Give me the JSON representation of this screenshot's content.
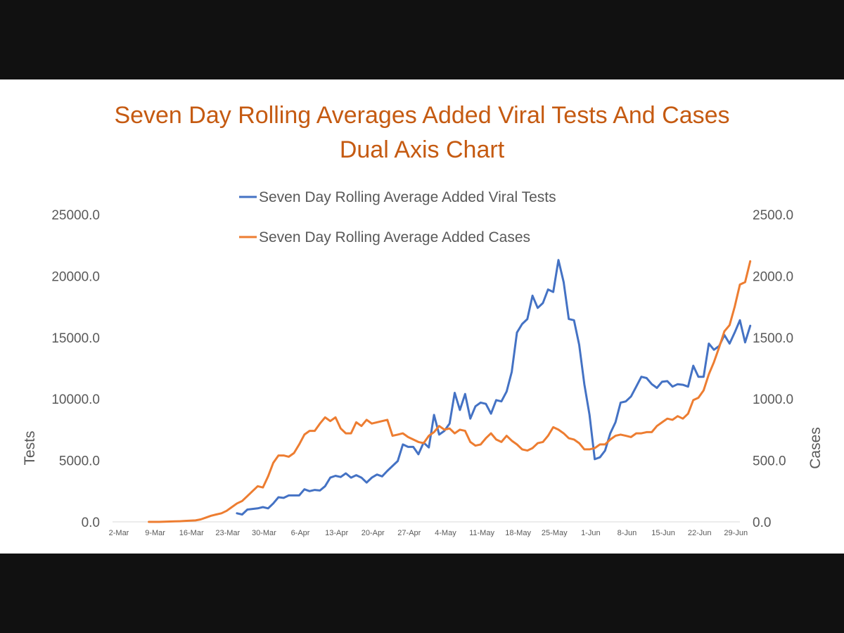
{
  "chart_data": {
    "type": "line",
    "title_lines": [
      "Seven Day Rolling Averages Added Viral Tests And Cases",
      "Dual Axis Chart"
    ],
    "left_axis": {
      "title": "Tests",
      "min": 0,
      "max": 25000,
      "step": 5000,
      "tick_labels": [
        "0.0",
        "5000.0",
        "10000.0",
        "15000.0",
        "20000.0",
        "25000.0"
      ]
    },
    "right_axis": {
      "title": "Cases",
      "min": 0,
      "max": 2500,
      "step": 500,
      "tick_labels": [
        "0.0",
        "500.0",
        "1000.0",
        "1500.0",
        "2000.0",
        "2500.0"
      ]
    },
    "x_axis": {
      "start_date": "2020-03-02",
      "end_date": "2020-07-01",
      "tick_labels": [
        "2-Mar",
        "9-Mar",
        "16-Mar",
        "23-Mar",
        "30-Mar",
        "6-Apr",
        "13-Apr",
        "20-Apr",
        "27-Apr",
        "4-May",
        "11-May",
        "18-May",
        "25-May",
        "1-Jun",
        "8-Jun",
        "15-Jun",
        "22-Jun",
        "29-Jun"
      ]
    },
    "grid": false,
    "legend_position": "top",
    "series": [
      {
        "name": "Seven Day Rolling Average Added Viral Tests",
        "axis": "left",
        "color": "#4472C4",
        "points": [
          [
            "2020-03-26",
            700
          ],
          [
            "2020-03-27",
            600
          ],
          [
            "2020-03-28",
            1000
          ],
          [
            "2020-03-29",
            1050
          ],
          [
            "2020-03-30",
            1100
          ],
          [
            "2020-03-31",
            1200
          ],
          [
            "2020-04-01",
            1100
          ],
          [
            "2020-04-02",
            1500
          ],
          [
            "2020-04-03",
            2000
          ],
          [
            "2020-04-04",
            1950
          ],
          [
            "2020-04-05",
            2150
          ],
          [
            "2020-04-06",
            2150
          ],
          [
            "2020-04-07",
            2150
          ],
          [
            "2020-04-08",
            2650
          ],
          [
            "2020-04-09",
            2500
          ],
          [
            "2020-04-10",
            2600
          ],
          [
            "2020-04-11",
            2550
          ],
          [
            "2020-04-12",
            2900
          ],
          [
            "2020-04-13",
            3600
          ],
          [
            "2020-04-14",
            3750
          ],
          [
            "2020-04-15",
            3650
          ],
          [
            "2020-04-16",
            3950
          ],
          [
            "2020-04-17",
            3600
          ],
          [
            "2020-04-18",
            3800
          ],
          [
            "2020-04-19",
            3600
          ],
          [
            "2020-04-20",
            3200
          ],
          [
            "2020-04-21",
            3600
          ],
          [
            "2020-04-22",
            3850
          ],
          [
            "2020-04-23",
            3700
          ],
          [
            "2020-04-24",
            4150
          ],
          [
            "2020-04-25",
            4550
          ],
          [
            "2020-04-26",
            4950
          ],
          [
            "2020-04-27",
            6300
          ],
          [
            "2020-04-28",
            6100
          ],
          [
            "2020-04-29",
            6100
          ],
          [
            "2020-04-30",
            5500
          ],
          [
            "2020-05-01",
            6450
          ],
          [
            "2020-05-02",
            6050
          ],
          [
            "2020-05-03",
            8700
          ],
          [
            "2020-05-04",
            7100
          ],
          [
            "2020-05-05",
            7400
          ],
          [
            "2020-05-06",
            8000
          ],
          [
            "2020-05-07",
            10500
          ],
          [
            "2020-05-08",
            9100
          ],
          [
            "2020-05-09",
            10400
          ],
          [
            "2020-05-10",
            8400
          ],
          [
            "2020-05-11",
            9400
          ],
          [
            "2020-05-12",
            9700
          ],
          [
            "2020-05-13",
            9600
          ],
          [
            "2020-05-14",
            8800
          ],
          [
            "2020-05-15",
            9900
          ],
          [
            "2020-05-16",
            9800
          ],
          [
            "2020-05-17",
            10600
          ],
          [
            "2020-05-18",
            12200
          ],
          [
            "2020-05-19",
            15400
          ],
          [
            "2020-05-20",
            16100
          ],
          [
            "2020-05-21",
            16500
          ],
          [
            "2020-05-22",
            18400
          ],
          [
            "2020-05-23",
            17400
          ],
          [
            "2020-05-24",
            17800
          ],
          [
            "2020-05-25",
            18900
          ],
          [
            "2020-05-26",
            18700
          ],
          [
            "2020-05-27",
            21300
          ],
          [
            "2020-05-28",
            19500
          ],
          [
            "2020-05-29",
            16500
          ],
          [
            "2020-05-30",
            16400
          ],
          [
            "2020-05-31",
            14400
          ],
          [
            "2020-06-01",
            11200
          ],
          [
            "2020-06-02",
            8700
          ],
          [
            "2020-06-03",
            5100
          ],
          [
            "2020-06-04",
            5250
          ],
          [
            "2020-06-05",
            5800
          ],
          [
            "2020-06-06",
            7200
          ],
          [
            "2020-06-07",
            8100
          ],
          [
            "2020-06-08",
            9700
          ],
          [
            "2020-06-09",
            9800
          ],
          [
            "2020-06-10",
            10200
          ],
          [
            "2020-06-11",
            11000
          ],
          [
            "2020-06-12",
            11800
          ],
          [
            "2020-06-13",
            11700
          ],
          [
            "2020-06-14",
            11200
          ],
          [
            "2020-06-15",
            10900
          ],
          [
            "2020-06-16",
            11400
          ],
          [
            "2020-06-17",
            11450
          ],
          [
            "2020-06-18",
            11000
          ],
          [
            "2020-06-19",
            11200
          ],
          [
            "2020-06-20",
            11150
          ],
          [
            "2020-06-21",
            11000
          ],
          [
            "2020-06-22",
            12700
          ],
          [
            "2020-06-23",
            11800
          ],
          [
            "2020-06-24",
            11800
          ],
          [
            "2020-06-25",
            14500
          ],
          [
            "2020-06-26",
            14000
          ],
          [
            "2020-06-27",
            14300
          ],
          [
            "2020-06-28",
            15200
          ],
          [
            "2020-06-29",
            14500
          ],
          [
            "2020-06-30",
            15400
          ],
          [
            "2020-07-01",
            16400
          ],
          [
            "2020-07-02",
            14600
          ],
          [
            "2020-07-03",
            15950
          ]
        ]
      },
      {
        "name": "Seven Day Rolling Average Added Cases",
        "axis": "right",
        "color": "#ED7D31",
        "points": [
          [
            "2020-03-09",
            0
          ],
          [
            "2020-03-10",
            0
          ],
          [
            "2020-03-11",
            0
          ],
          [
            "2020-03-12",
            2
          ],
          [
            "2020-03-13",
            3
          ],
          [
            "2020-03-14",
            4
          ],
          [
            "2020-03-15",
            5
          ],
          [
            "2020-03-16",
            8
          ],
          [
            "2020-03-17",
            10
          ],
          [
            "2020-03-18",
            12
          ],
          [
            "2020-03-19",
            20
          ],
          [
            "2020-03-20",
            35
          ],
          [
            "2020-03-21",
            50
          ],
          [
            "2020-03-22",
            60
          ],
          [
            "2020-03-23",
            70
          ],
          [
            "2020-03-24",
            90
          ],
          [
            "2020-03-25",
            120
          ],
          [
            "2020-03-26",
            150
          ],
          [
            "2020-03-27",
            170
          ],
          [
            "2020-03-28",
            210
          ],
          [
            "2020-03-29",
            250
          ],
          [
            "2020-03-30",
            290
          ],
          [
            "2020-03-31",
            280
          ],
          [
            "2020-04-01",
            370
          ],
          [
            "2020-04-02",
            480
          ],
          [
            "2020-04-03",
            540
          ],
          [
            "2020-04-04",
            540
          ],
          [
            "2020-04-05",
            530
          ],
          [
            "2020-04-06",
            560
          ],
          [
            "2020-04-07",
            630
          ],
          [
            "2020-04-08",
            710
          ],
          [
            "2020-04-09",
            740
          ],
          [
            "2020-04-10",
            740
          ],
          [
            "2020-04-11",
            800
          ],
          [
            "2020-04-12",
            850
          ],
          [
            "2020-04-13",
            820
          ],
          [
            "2020-04-14",
            850
          ],
          [
            "2020-04-15",
            760
          ],
          [
            "2020-04-16",
            720
          ],
          [
            "2020-04-17",
            720
          ],
          [
            "2020-04-18",
            810
          ],
          [
            "2020-04-19",
            780
          ],
          [
            "2020-04-20",
            830
          ],
          [
            "2020-04-21",
            800
          ],
          [
            "2020-04-22",
            810
          ],
          [
            "2020-04-23",
            820
          ],
          [
            "2020-04-24",
            830
          ],
          [
            "2020-04-25",
            700
          ],
          [
            "2020-04-26",
            710
          ],
          [
            "2020-04-27",
            720
          ],
          [
            "2020-04-28",
            690
          ],
          [
            "2020-04-29",
            670
          ],
          [
            "2020-04-30",
            650
          ],
          [
            "2020-05-01",
            640
          ],
          [
            "2020-05-02",
            700
          ],
          [
            "2020-05-03",
            730
          ],
          [
            "2020-05-04",
            780
          ],
          [
            "2020-05-05",
            750
          ],
          [
            "2020-05-06",
            760
          ],
          [
            "2020-05-07",
            720
          ],
          [
            "2020-05-08",
            750
          ],
          [
            "2020-05-09",
            740
          ],
          [
            "2020-05-10",
            650
          ],
          [
            "2020-05-11",
            620
          ],
          [
            "2020-05-12",
            630
          ],
          [
            "2020-05-13",
            680
          ],
          [
            "2020-05-14",
            720
          ],
          [
            "2020-05-15",
            670
          ],
          [
            "2020-05-16",
            650
          ],
          [
            "2020-05-17",
            700
          ],
          [
            "2020-05-18",
            660
          ],
          [
            "2020-05-19",
            630
          ],
          [
            "2020-05-20",
            590
          ],
          [
            "2020-05-21",
            580
          ],
          [
            "2020-05-22",
            600
          ],
          [
            "2020-05-23",
            640
          ],
          [
            "2020-05-24",
            650
          ],
          [
            "2020-05-25",
            700
          ],
          [
            "2020-05-26",
            770
          ],
          [
            "2020-05-27",
            750
          ],
          [
            "2020-05-28",
            720
          ],
          [
            "2020-05-29",
            680
          ],
          [
            "2020-05-30",
            670
          ],
          [
            "2020-05-31",
            640
          ],
          [
            "2020-06-01",
            590
          ],
          [
            "2020-06-02",
            590
          ],
          [
            "2020-06-03",
            600
          ],
          [
            "2020-06-04",
            630
          ],
          [
            "2020-06-05",
            630
          ],
          [
            "2020-06-06",
            670
          ],
          [
            "2020-06-07",
            700
          ],
          [
            "2020-06-08",
            710
          ],
          [
            "2020-06-09",
            700
          ],
          [
            "2020-06-10",
            690
          ],
          [
            "2020-06-11",
            720
          ],
          [
            "2020-06-12",
            720
          ],
          [
            "2020-06-13",
            730
          ],
          [
            "2020-06-14",
            730
          ],
          [
            "2020-06-15",
            780
          ],
          [
            "2020-06-16",
            810
          ],
          [
            "2020-06-17",
            840
          ],
          [
            "2020-06-18",
            830
          ],
          [
            "2020-06-19",
            860
          ],
          [
            "2020-06-20",
            840
          ],
          [
            "2020-06-21",
            880
          ],
          [
            "2020-06-22",
            990
          ],
          [
            "2020-06-23",
            1010
          ],
          [
            "2020-06-24",
            1070
          ],
          [
            "2020-06-25",
            1200
          ],
          [
            "2020-06-26",
            1300
          ],
          [
            "2020-06-27",
            1420
          ],
          [
            "2020-06-28",
            1550
          ],
          [
            "2020-06-29",
            1600
          ],
          [
            "2020-06-30",
            1750
          ],
          [
            "2020-07-01",
            1930
          ],
          [
            "2020-07-02",
            1950
          ],
          [
            "2020-07-03",
            2120
          ]
        ]
      }
    ]
  }
}
